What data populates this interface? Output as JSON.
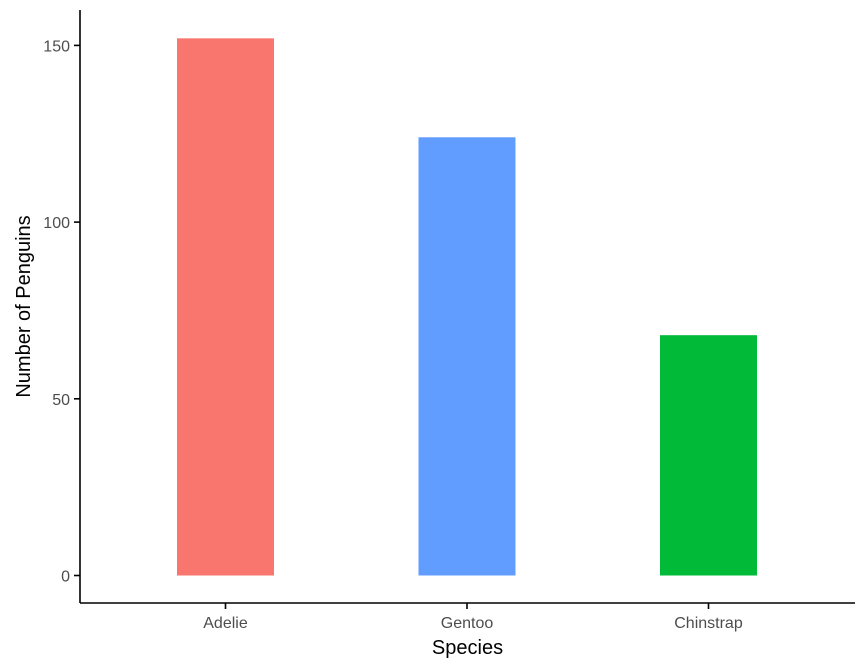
{
  "chart_data": {
    "type": "bar",
    "title": "",
    "xlabel": "Species",
    "ylabel": "Number of Penguins",
    "categories": [
      "Adelie",
      "Gentoo",
      "Chinstrap"
    ],
    "values": [
      152,
      124,
      68
    ],
    "colors": [
      "#F8766D",
      "#619CFF",
      "#00BA38"
    ],
    "ylim": [
      0,
      160
    ],
    "yticks": [
      0,
      50,
      100,
      150
    ],
    "ytick_labels": [
      "0",
      "50",
      "100",
      "150"
    ],
    "grid": false,
    "legend": "none"
  }
}
